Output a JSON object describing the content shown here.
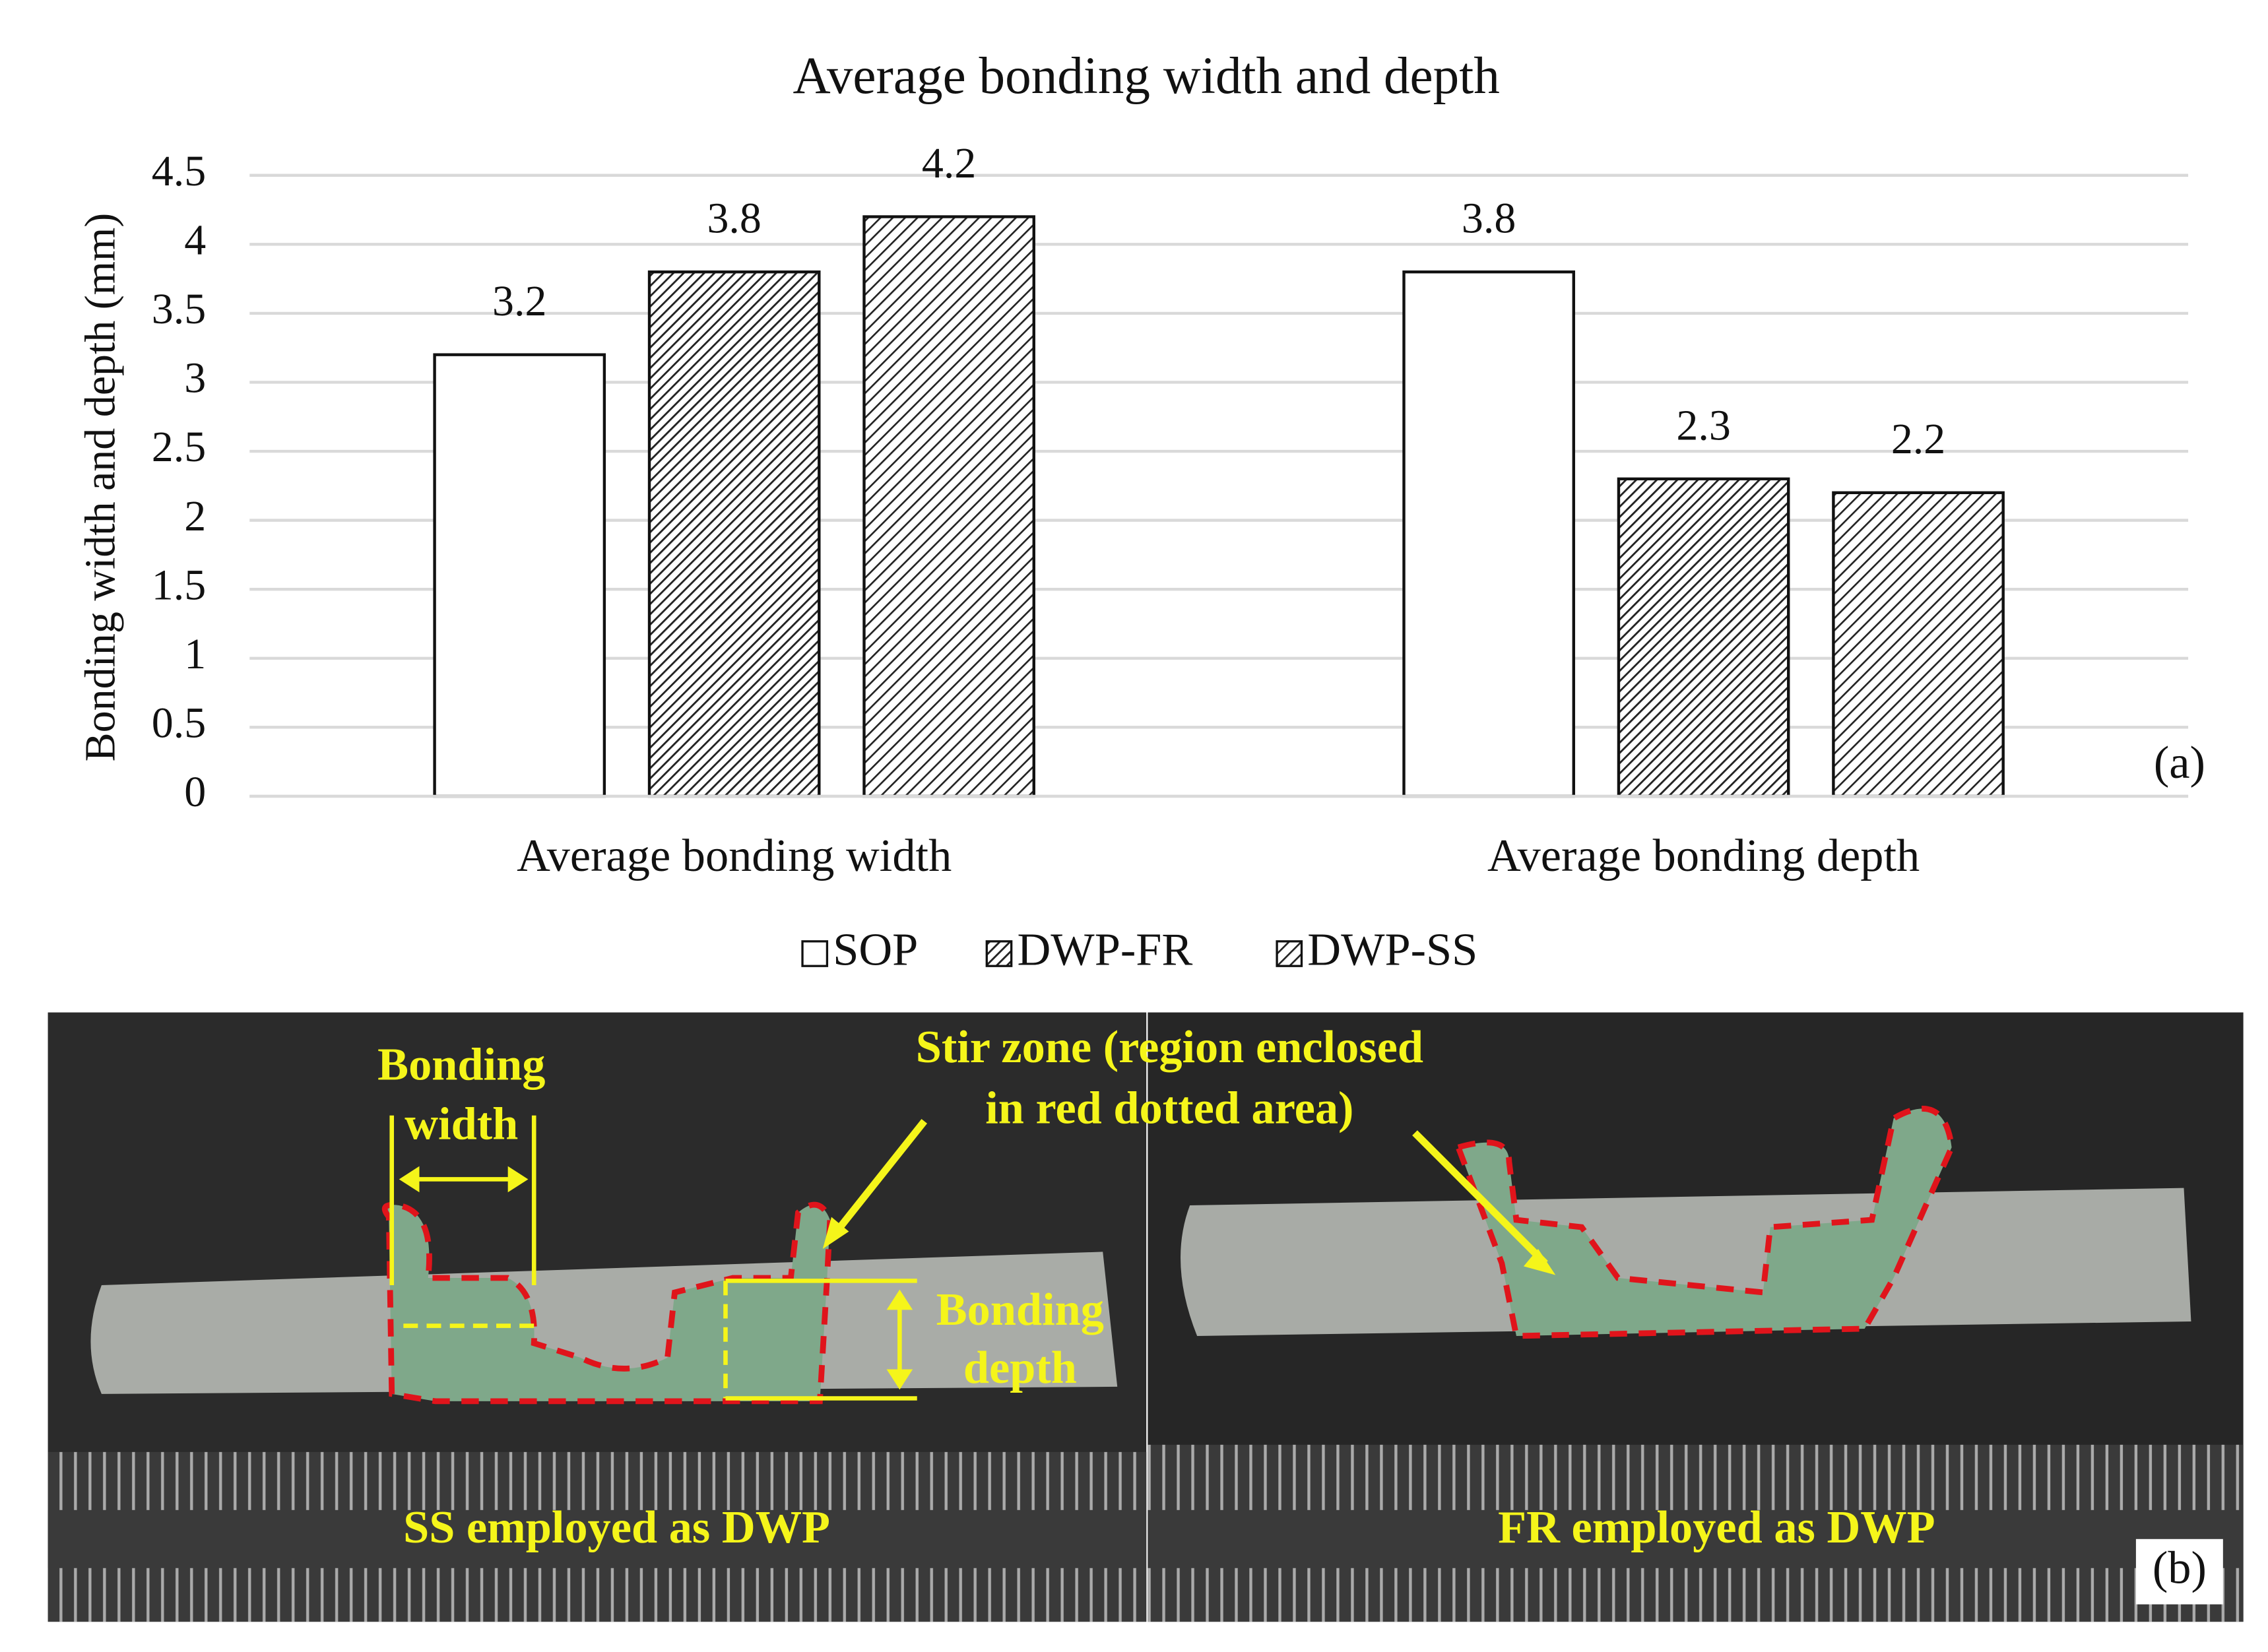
{
  "chart_data": {
    "type": "bar",
    "title": "Average bonding width and depth",
    "y_label": "Bonding width and depth (mm)",
    "categories": [
      "Average bonding width",
      "Average bonding depth"
    ],
    "series": [
      {
        "name": "SOP",
        "color": "#ffffff",
        "hatch": null,
        "values": [
          3.2,
          3.8
        ]
      },
      {
        "name": "DWP-FR",
        "color": "#ffffff",
        "hatch": "dense",
        "values": [
          3.8,
          2.3
        ]
      },
      {
        "name": "DWP-SS",
        "color": "#ffffff",
        "hatch": "wide",
        "values": [
          4.2,
          2.2
        ]
      }
    ],
    "ylim": [
      0,
      4.5
    ],
    "yticks": [
      0,
      0.5,
      1,
      1.5,
      2,
      2.5,
      3,
      3.5,
      4,
      4.5
    ],
    "grid": true,
    "legend": "bottom",
    "panel_label": "(a)"
  },
  "photo": {
    "bonding_width": [
      "Bonding",
      "width"
    ],
    "stir_zone": [
      "Stir zone (region enclosed",
      "in red dotted area)"
    ],
    "bonding_depth": [
      "Bonding",
      "depth"
    ],
    "left_caption": "SS employed as DWP",
    "right_caption": "FR employed as DWP",
    "panel_label": "(b)"
  }
}
